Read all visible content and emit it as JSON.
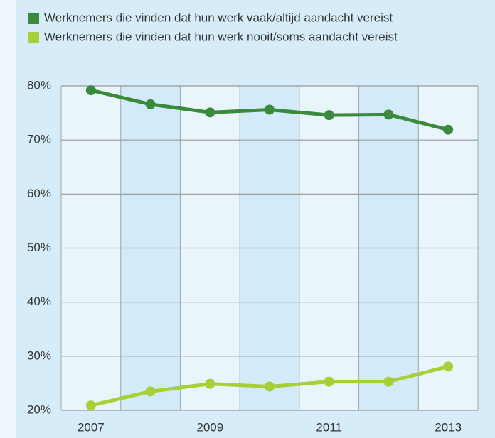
{
  "chart_data": {
    "type": "line",
    "x": [
      2007,
      2008,
      2009,
      2010,
      2011,
      2012,
      2013
    ],
    "xlim": [
      2006.5,
      2013.5
    ],
    "xticks": [
      2007,
      2009,
      2011,
      2013
    ],
    "ylim": [
      20,
      80
    ],
    "yticks": [
      {
        "value": 20,
        "label": "20%"
      },
      {
        "value": 30,
        "label": "30%"
      },
      {
        "value": 40,
        "label": "40%"
      },
      {
        "value": 50,
        "label": "50%"
      },
      {
        "value": 60,
        "label": "60%"
      },
      {
        "value": 70,
        "label": "70%"
      },
      {
        "value": 80,
        "label": "80%"
      }
    ],
    "grid": true,
    "series": [
      {
        "name": "Werknemers die vinden dat hun werk vaak/altijd aandacht vereist",
        "color": "#3a8a3c",
        "values": [
          79.2,
          76.6,
          75.1,
          75.6,
          74.6,
          74.7,
          71.9
        ]
      },
      {
        "name": "Werknemers die vinden dat hun werk nooit/soms aandacht vereist",
        "color": "#a6cf38",
        "values": [
          20.9,
          23.5,
          24.9,
          24.4,
          25.3,
          25.3,
          28.1
        ]
      }
    ]
  }
}
